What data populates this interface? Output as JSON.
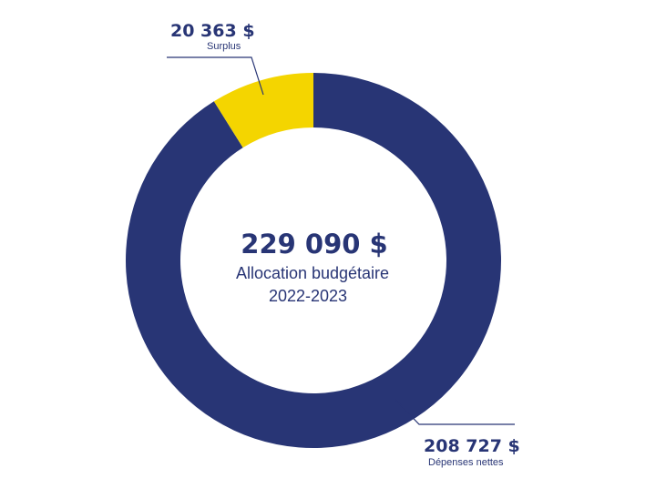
{
  "chart_data": {
    "type": "pie",
    "variant": "donut",
    "total": 229090,
    "center_total_label": "229 090 $",
    "center_label_line1": "Allocation budgétaire",
    "center_label_line2": "2022-2023",
    "slices": [
      {
        "label": "Dépenses nettes",
        "value": 208727,
        "value_label": "208 727 $",
        "color": "#283575"
      },
      {
        "label": "Surplus",
        "value": 20363,
        "value_label": "20 363 $",
        "color": "#F4D500"
      }
    ]
  },
  "colors": {
    "text": "#283575",
    "leader": "#283575"
  }
}
